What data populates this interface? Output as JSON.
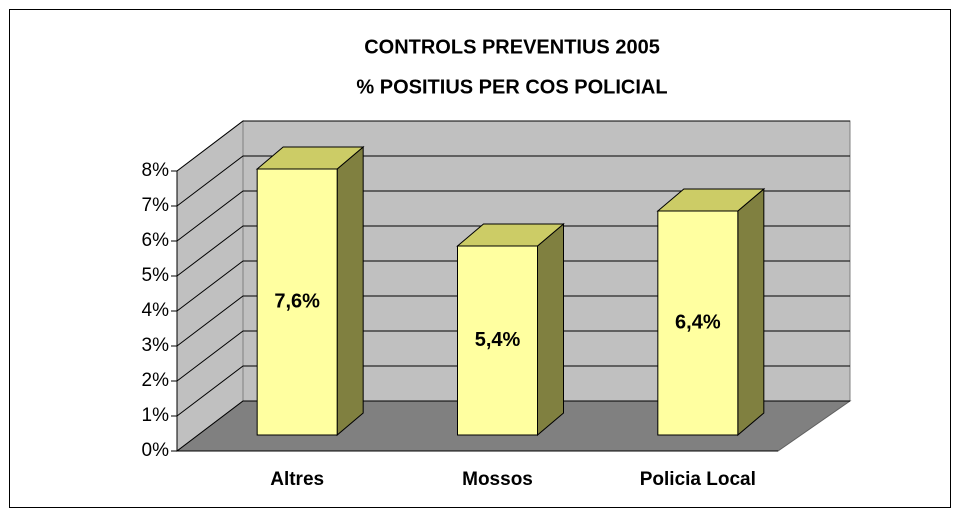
{
  "chart_data": {
    "type": "bar3d",
    "title": "CONTROLS PREVENTIUS 2005",
    "subtitle": "% POSITIUS PER COS POLICIAL",
    "categories": [
      "Altres",
      "Mossos",
      "Policia Local"
    ],
    "values": [
      7.6,
      5.4,
      6.4
    ],
    "value_labels": [
      "7,6%",
      "5,4%",
      "6,4%"
    ],
    "color": "#ffffa0",
    "ylim": [
      0,
      8
    ],
    "yticks": [
      {
        "value": 0,
        "label": "0%"
      },
      {
        "value": 1,
        "label": "1%"
      },
      {
        "value": 2,
        "label": "2%"
      },
      {
        "value": 3,
        "label": "3%"
      },
      {
        "value": 4,
        "label": "4%"
      },
      {
        "value": 5,
        "label": "5%"
      },
      {
        "value": 6,
        "label": "6%"
      },
      {
        "value": 7,
        "label": "7%"
      },
      {
        "value": 8,
        "label": "8%"
      }
    ],
    "grid": true
  }
}
